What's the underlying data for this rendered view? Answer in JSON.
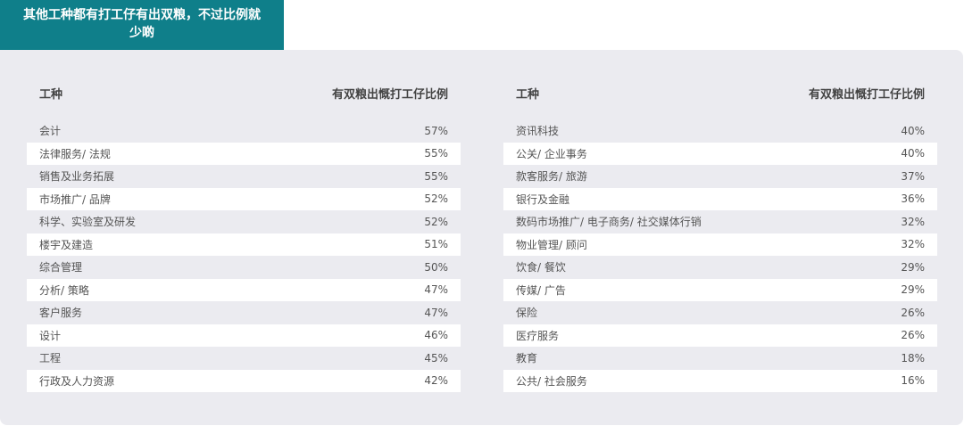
{
  "tab": {
    "title_line1": "其他工种都有打工仔有出双粮，不过比例就",
    "title_line2": "少啲"
  },
  "left_table": {
    "headers": [
      "工种",
      "有双粮出慨打工仔比例"
    ],
    "rows": [
      {
        "job": "会计",
        "pct": "57%"
      },
      {
        "job": "法律服务/ 法规",
        "pct": "55%"
      },
      {
        "job": "销售及业务拓展",
        "pct": "55%"
      },
      {
        "job": "市场推广/ 品牌",
        "pct": "52%"
      },
      {
        "job": "科学、实验室及研发",
        "pct": "52%"
      },
      {
        "job": "楼宇及建造",
        "pct": "51%"
      },
      {
        "job": "综合管理",
        "pct": "50%"
      },
      {
        "job": "分析/ 策略",
        "pct": "47%"
      },
      {
        "job": "客户服务",
        "pct": "47%"
      },
      {
        "job": "设计",
        "pct": "46%"
      },
      {
        "job": "工程",
        "pct": "45%"
      },
      {
        "job": "行政及人力资源",
        "pct": "42%"
      }
    ]
  },
  "right_table": {
    "headers": [
      "工种",
      "有双粮出慨打工仔比例"
    ],
    "rows": [
      {
        "job": "资讯科技",
        "pct": "40%"
      },
      {
        "job": "公关/ 企业事务",
        "pct": "40%"
      },
      {
        "job": "款客服务/ 旅游",
        "pct": "37%"
      },
      {
        "job": "银行及金融",
        "pct": "36%"
      },
      {
        "job": "数码市场推广/ 电子商务/ 社交媒体行销",
        "pct": "32%"
      },
      {
        "job": "物业管理/ 顾问",
        "pct": "32%"
      },
      {
        "job": "饮食/ 餐饮",
        "pct": "29%"
      },
      {
        "job": "传媒/ 广告",
        "pct": "29%"
      },
      {
        "job": "保险",
        "pct": "26%"
      },
      {
        "job": "医疗服务",
        "pct": "26%"
      },
      {
        "job": "教育",
        "pct": "18%"
      },
      {
        "job": "公共/ 社会服务",
        "pct": "16%"
      }
    ]
  },
  "colors": {
    "tab_bg": "#0f7f8a",
    "panel_bg": "#ebebf0"
  }
}
